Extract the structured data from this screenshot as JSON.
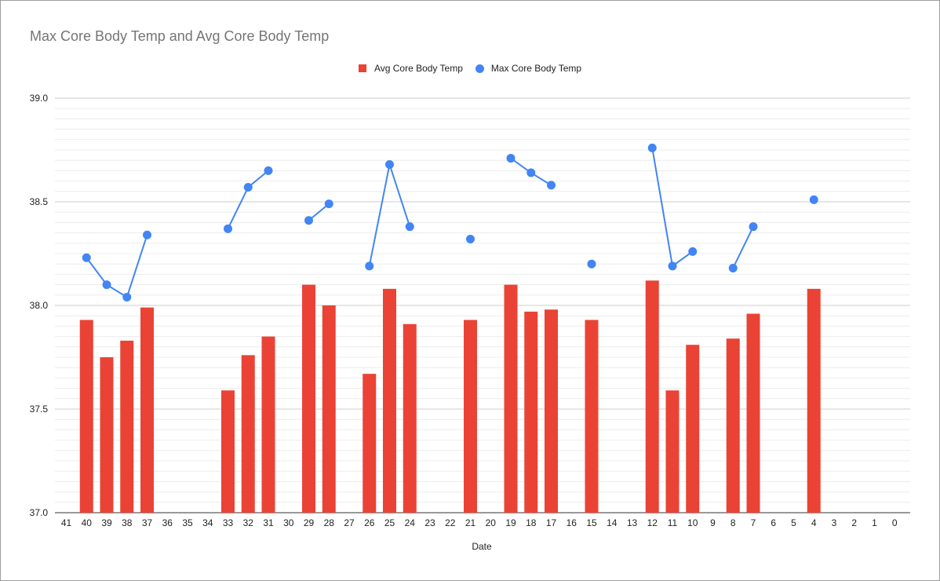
{
  "chart_data": {
    "type": "bar",
    "title": "Max Core Body Temp and Avg Core Body Temp",
    "xlabel": "Date",
    "ylabel": "",
    "ylim": [
      37.0,
      39.0
    ],
    "yticks": [
      "37.0",
      "37.5",
      "38.0",
      "38.5",
      "39.0"
    ],
    "grid": true,
    "legend_position": "top-center",
    "categories": [
      41,
      40,
      39,
      38,
      37,
      36,
      35,
      34,
      33,
      32,
      31,
      30,
      29,
      28,
      27,
      26,
      25,
      24,
      23,
      22,
      21,
      20,
      19,
      18,
      17,
      16,
      15,
      14,
      13,
      12,
      11,
      10,
      9,
      8,
      7,
      6,
      5,
      4,
      3,
      2,
      1,
      0
    ],
    "series": [
      {
        "name": "Avg Core Body Temp",
        "kind": "bar",
        "color": "#ea4335",
        "values": [
          null,
          37.93,
          37.75,
          37.83,
          37.99,
          null,
          null,
          null,
          37.59,
          37.76,
          37.85,
          null,
          38.1,
          38.0,
          null,
          37.67,
          38.08,
          37.91,
          null,
          null,
          37.93,
          null,
          38.1,
          37.97,
          37.98,
          null,
          37.93,
          null,
          null,
          38.12,
          37.59,
          37.81,
          null,
          37.84,
          37.96,
          null,
          null,
          38.08,
          null,
          null,
          null,
          null
        ]
      },
      {
        "name": "Max Core Body Temp",
        "kind": "line",
        "color": "#4285f4",
        "values": [
          null,
          38.23,
          38.1,
          38.04,
          38.34,
          null,
          null,
          null,
          38.37,
          38.57,
          38.65,
          null,
          38.41,
          38.49,
          null,
          38.19,
          38.68,
          38.38,
          null,
          null,
          38.32,
          null,
          38.71,
          38.64,
          38.58,
          null,
          38.2,
          null,
          null,
          38.76,
          38.19,
          38.26,
          null,
          38.18,
          38.38,
          null,
          null,
          38.51,
          null,
          null,
          null,
          null
        ]
      }
    ]
  }
}
